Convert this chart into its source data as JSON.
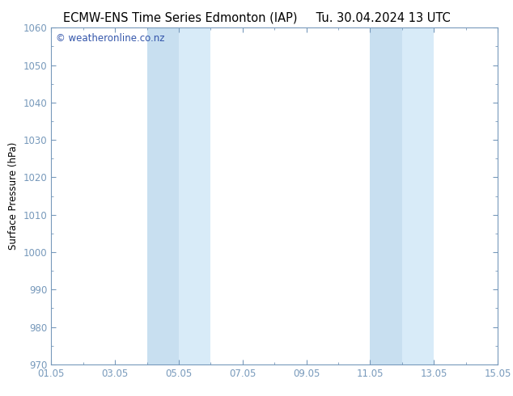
{
  "title_left": "ECMW-ENS Time Series Edmonton (IAP)",
  "title_right": "Tu. 30.04.2024 13 UTC",
  "ylabel": "Surface Pressure (hPa)",
  "ylim": [
    970,
    1060
  ],
  "yticks": [
    970,
    980,
    990,
    1000,
    1010,
    1020,
    1030,
    1040,
    1050,
    1060
  ],
  "xtick_labels": [
    "01.05",
    "03.05",
    "05.05",
    "07.05",
    "09.05",
    "11.05",
    "13.05",
    "15.05"
  ],
  "xtick_positions": [
    0,
    2,
    4,
    6,
    8,
    10,
    12,
    14
  ],
  "xlim": [
    0,
    14
  ],
  "shaded_bands": [
    {
      "x_start": 3.0,
      "x_end": 4.0,
      "color": "#c8dff0"
    },
    {
      "x_start": 4.0,
      "x_end": 5.0,
      "color": "#d8ebf8"
    },
    {
      "x_start": 10.0,
      "x_end": 11.0,
      "color": "#c8dff0"
    },
    {
      "x_start": 11.0,
      "x_end": 12.0,
      "color": "#d8ebf8"
    }
  ],
  "shade_color": "#ddeeff",
  "background_color": "#ffffff",
  "plot_bg_color": "#ffffff",
  "spine_color": "#7799bb",
  "tick_color": "#7799bb",
  "watermark_text": "© weatheronline.co.nz",
  "watermark_color": "#3355aa",
  "title_fontsize": 10.5,
  "axis_fontsize": 8.5,
  "watermark_fontsize": 8.5,
  "ylabel_fontsize": 8.5
}
